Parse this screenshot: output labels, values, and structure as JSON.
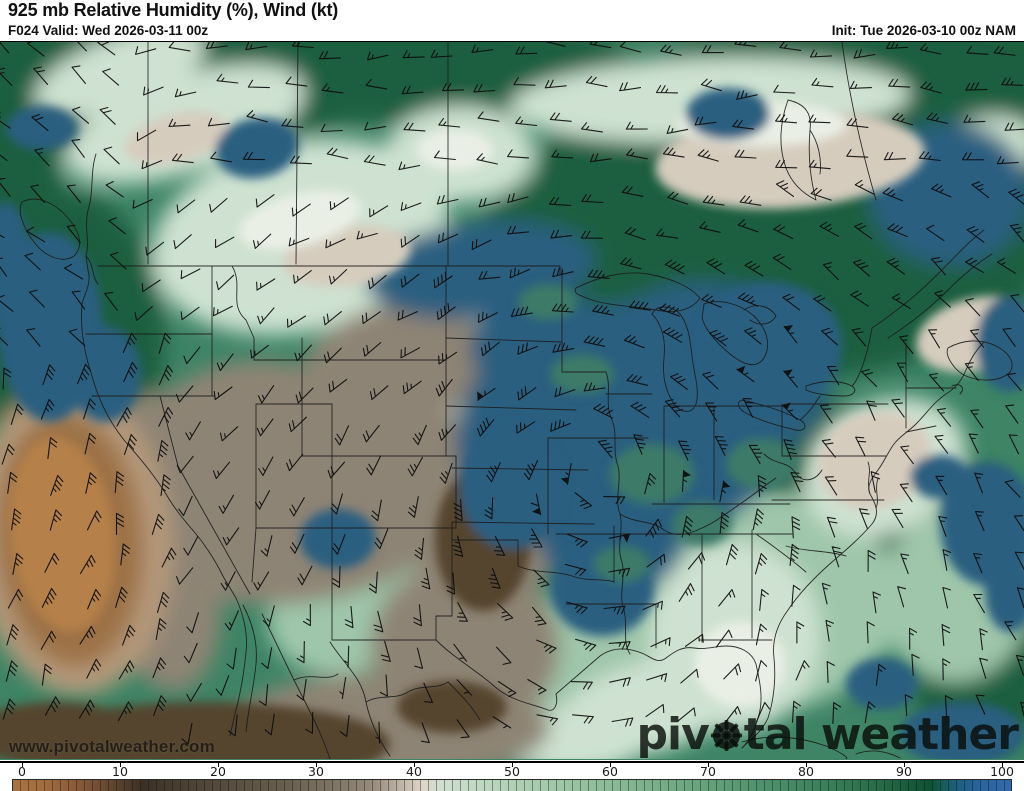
{
  "header": {
    "title": "925 mb Relative Humidity (%), Wind (kt)",
    "valid_label": "F024 Valid: Wed 2026-03-11 00z",
    "init_label": "Init: Tue 2026-03-10 00z NAM"
  },
  "map": {
    "watermark_url": "www.pivotalweather.com",
    "logo": {
      "before": "piv",
      "after": "tal weather"
    }
  },
  "colorbar": {
    "ticks": [
      0,
      10,
      20,
      30,
      40,
      50,
      60,
      70,
      80,
      90,
      100
    ],
    "stops": [
      [
        0,
        "#a97445"
      ],
      [
        3,
        "#a26d3f"
      ],
      [
        7,
        "#83573a"
      ],
      [
        10,
        "#5f452f"
      ],
      [
        13,
        "#3c3026"
      ],
      [
        17,
        "#494033"
      ],
      [
        22,
        "#584e41"
      ],
      [
        27,
        "#675d4e"
      ],
      [
        32,
        "#7d7365"
      ],
      [
        36,
        "#968b7d"
      ],
      [
        40,
        "#cfc5b8"
      ],
      [
        41,
        "#ded4c8"
      ],
      [
        43,
        "#d0dfd0"
      ],
      [
        47,
        "#bed7c2"
      ],
      [
        52,
        "#a9ccb0"
      ],
      [
        58,
        "#92bf9e"
      ],
      [
        64,
        "#7bb08c"
      ],
      [
        70,
        "#62a07a"
      ],
      [
        76,
        "#4c8f6a"
      ],
      [
        82,
        "#397d58"
      ],
      [
        87,
        "#276a47"
      ],
      [
        90,
        "#175a39"
      ],
      [
        92,
        "#0f5133"
      ],
      [
        93,
        "#155c53"
      ],
      [
        95,
        "#1f5f86"
      ],
      [
        97,
        "#2a649e"
      ],
      [
        100,
        "#3369ad"
      ]
    ]
  },
  "palette": {
    "base_green": "#3e8465",
    "dark_green": "#1a5f41",
    "light_green": "#9fc6aa",
    "pale_mint": "#cfe2d1",
    "white_mint": "#eaefe5",
    "tan": "#d6ccbe",
    "gray_brown": "#8e8475",
    "dark_brown": "#55452f",
    "orange_core": "#b58049",
    "orange_mid": "#9d7247",
    "orange_ring": "#b59a7c",
    "blue": "#2b5f80",
    "mottle_green": "#3e7a68",
    "border": "#1b1b1b",
    "barb": "#0d0d0d"
  }
}
